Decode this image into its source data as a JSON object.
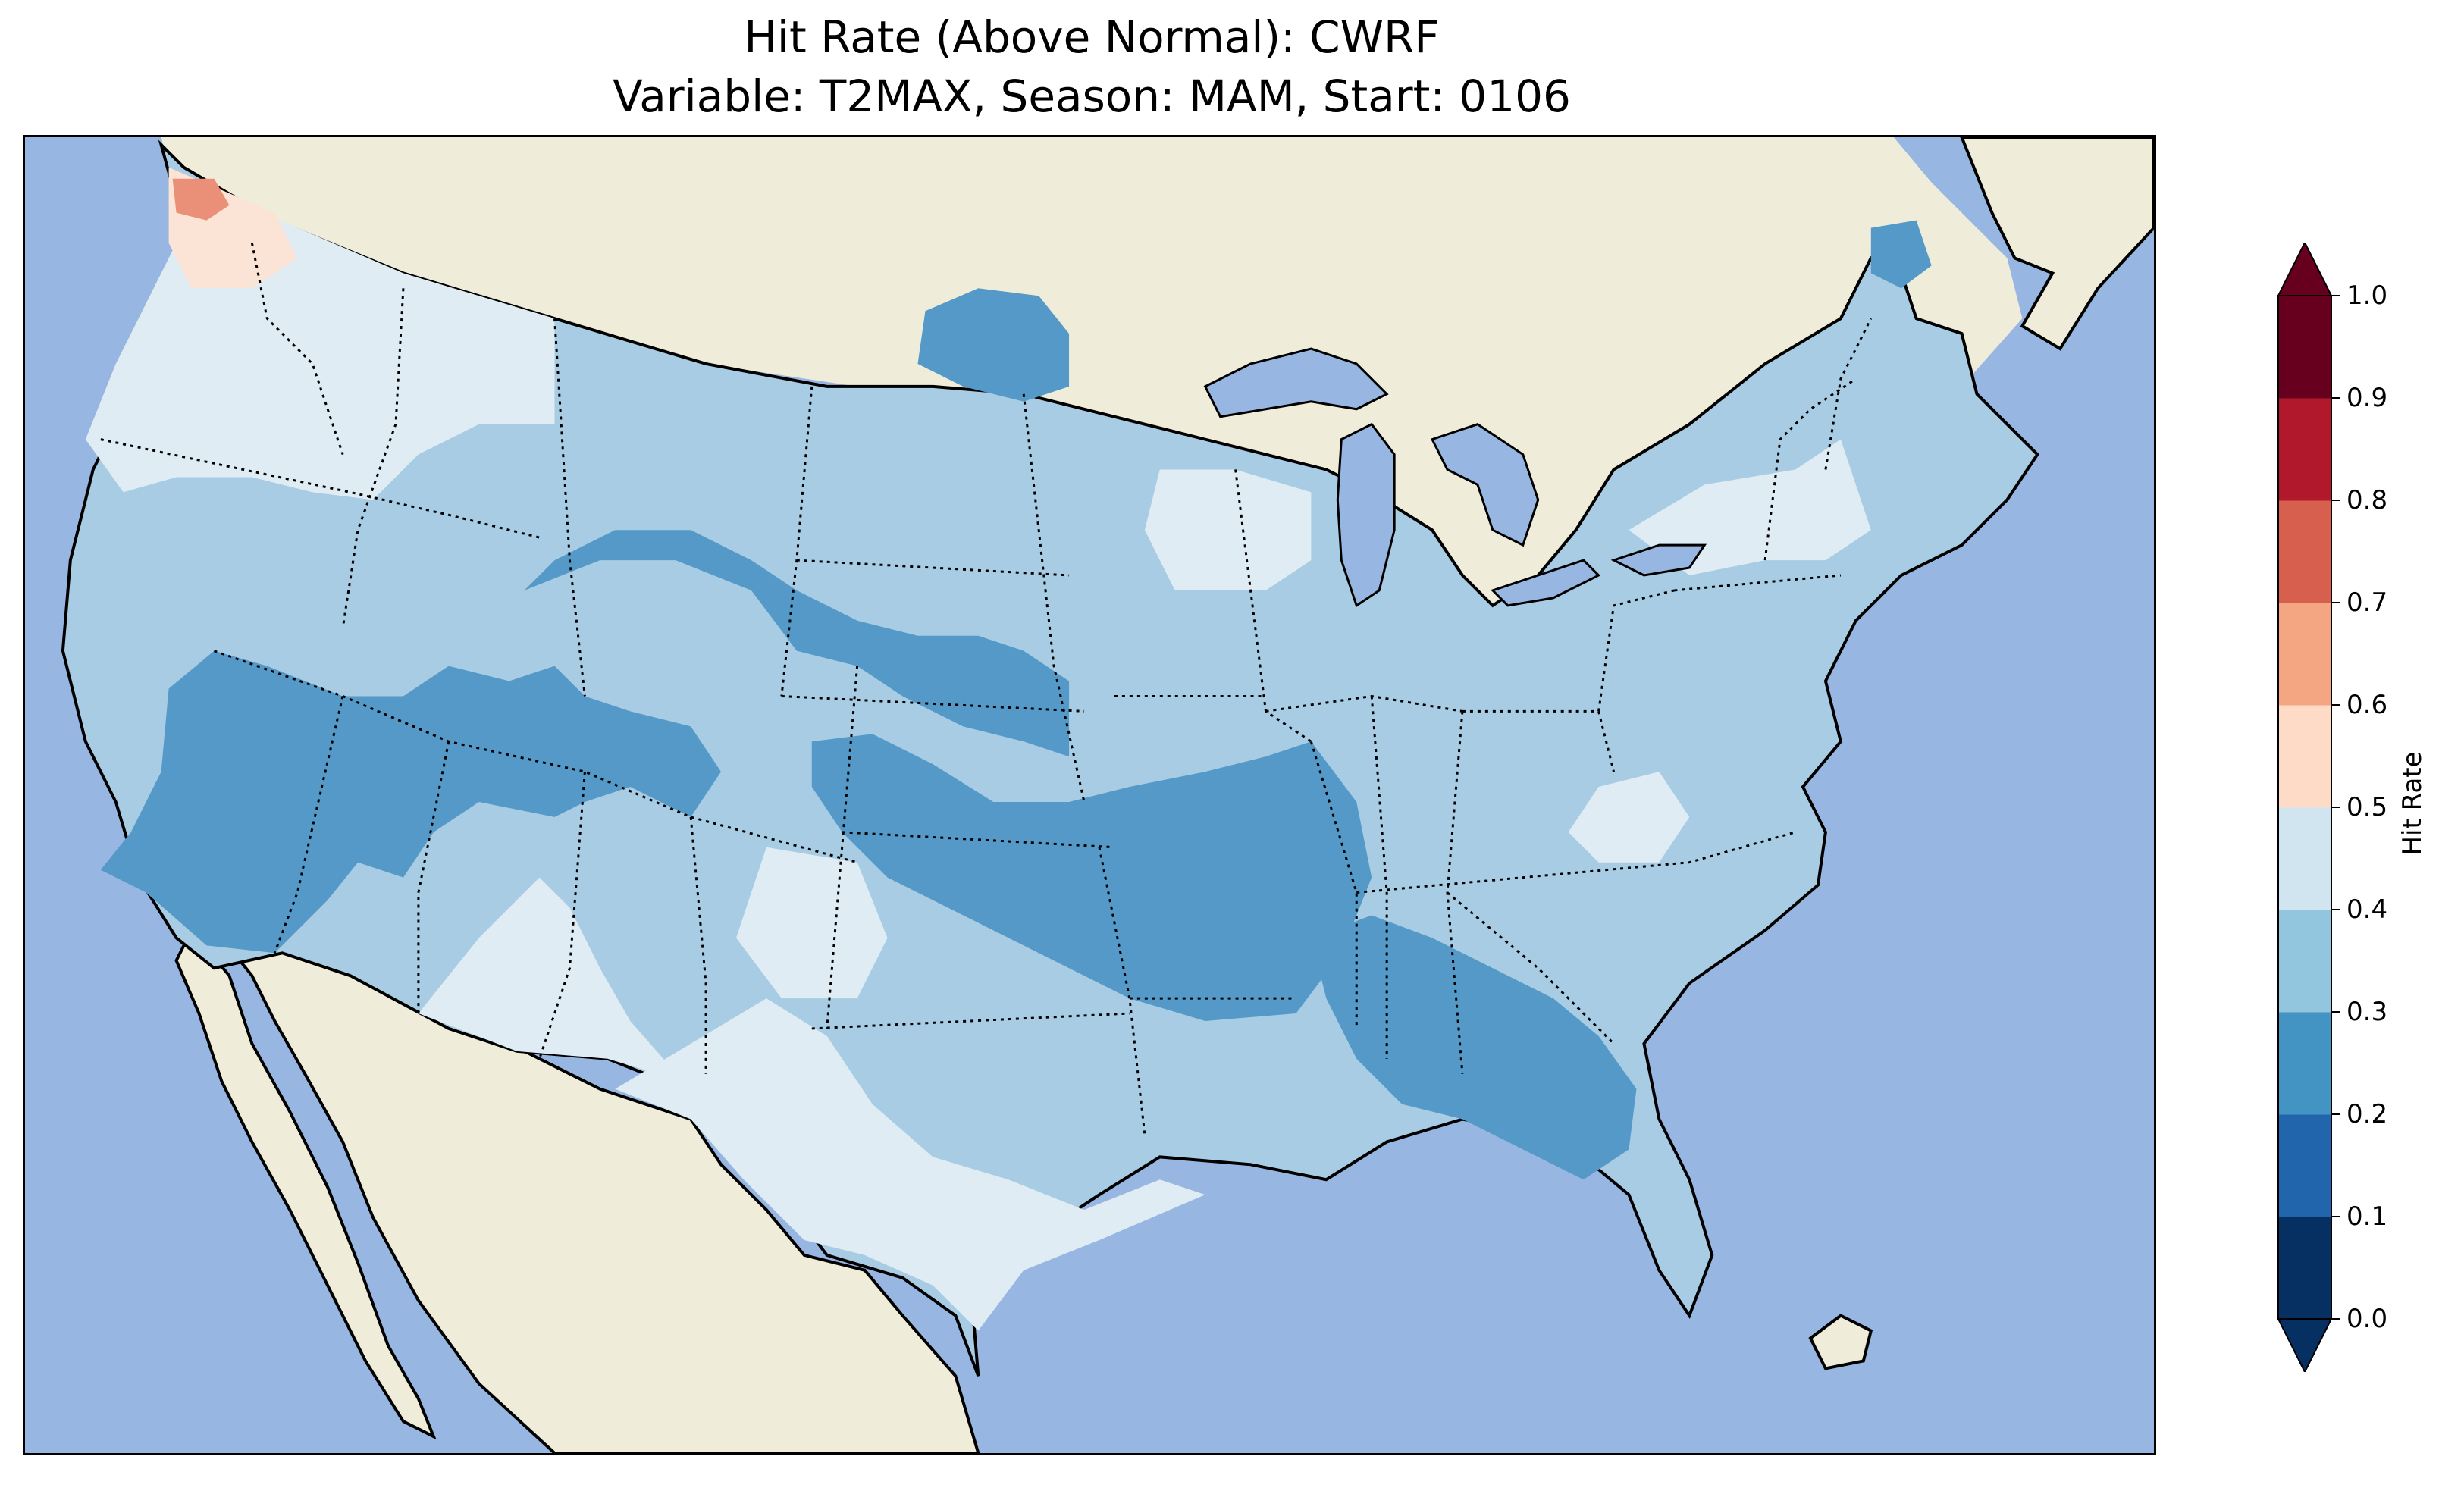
{
  "title": {
    "line1": "Hit Rate (Above Normal): CWRF",
    "line2": "Variable: T2MAX, Season: MAM, Start: 0106"
  },
  "map": {
    "colors": {
      "ocean": "#97b6e1",
      "land": "#efedda",
      "coast": "#000000",
      "state_border": "#000000"
    }
  },
  "colorbar": {
    "label": "Hit Rate",
    "ticks": [
      "0.0",
      "0.1",
      "0.2",
      "0.3",
      "0.4",
      "0.5",
      "0.6",
      "0.7",
      "0.8",
      "0.9",
      "1.0"
    ],
    "bins": [
      {
        "range": [
          0.0,
          0.1
        ],
        "color": "#053061"
      },
      {
        "range": [
          0.1,
          0.2
        ],
        "color": "#2166ac"
      },
      {
        "range": [
          0.2,
          0.3
        ],
        "color": "#4393c3"
      },
      {
        "range": [
          0.3,
          0.4
        ],
        "color": "#92c5de"
      },
      {
        "range": [
          0.4,
          0.5
        ],
        "color": "#d1e5f0"
      },
      {
        "range": [
          0.5,
          0.6
        ],
        "color": "#fddbc7"
      },
      {
        "range": [
          0.6,
          0.7
        ],
        "color": "#f4a582"
      },
      {
        "range": [
          0.7,
          0.8
        ],
        "color": "#d6604d"
      },
      {
        "range": [
          0.8,
          0.9
        ],
        "color": "#b2182b"
      },
      {
        "range": [
          0.9,
          1.0
        ],
        "color": "#67001f"
      }
    ],
    "extend": "both"
  }
}
